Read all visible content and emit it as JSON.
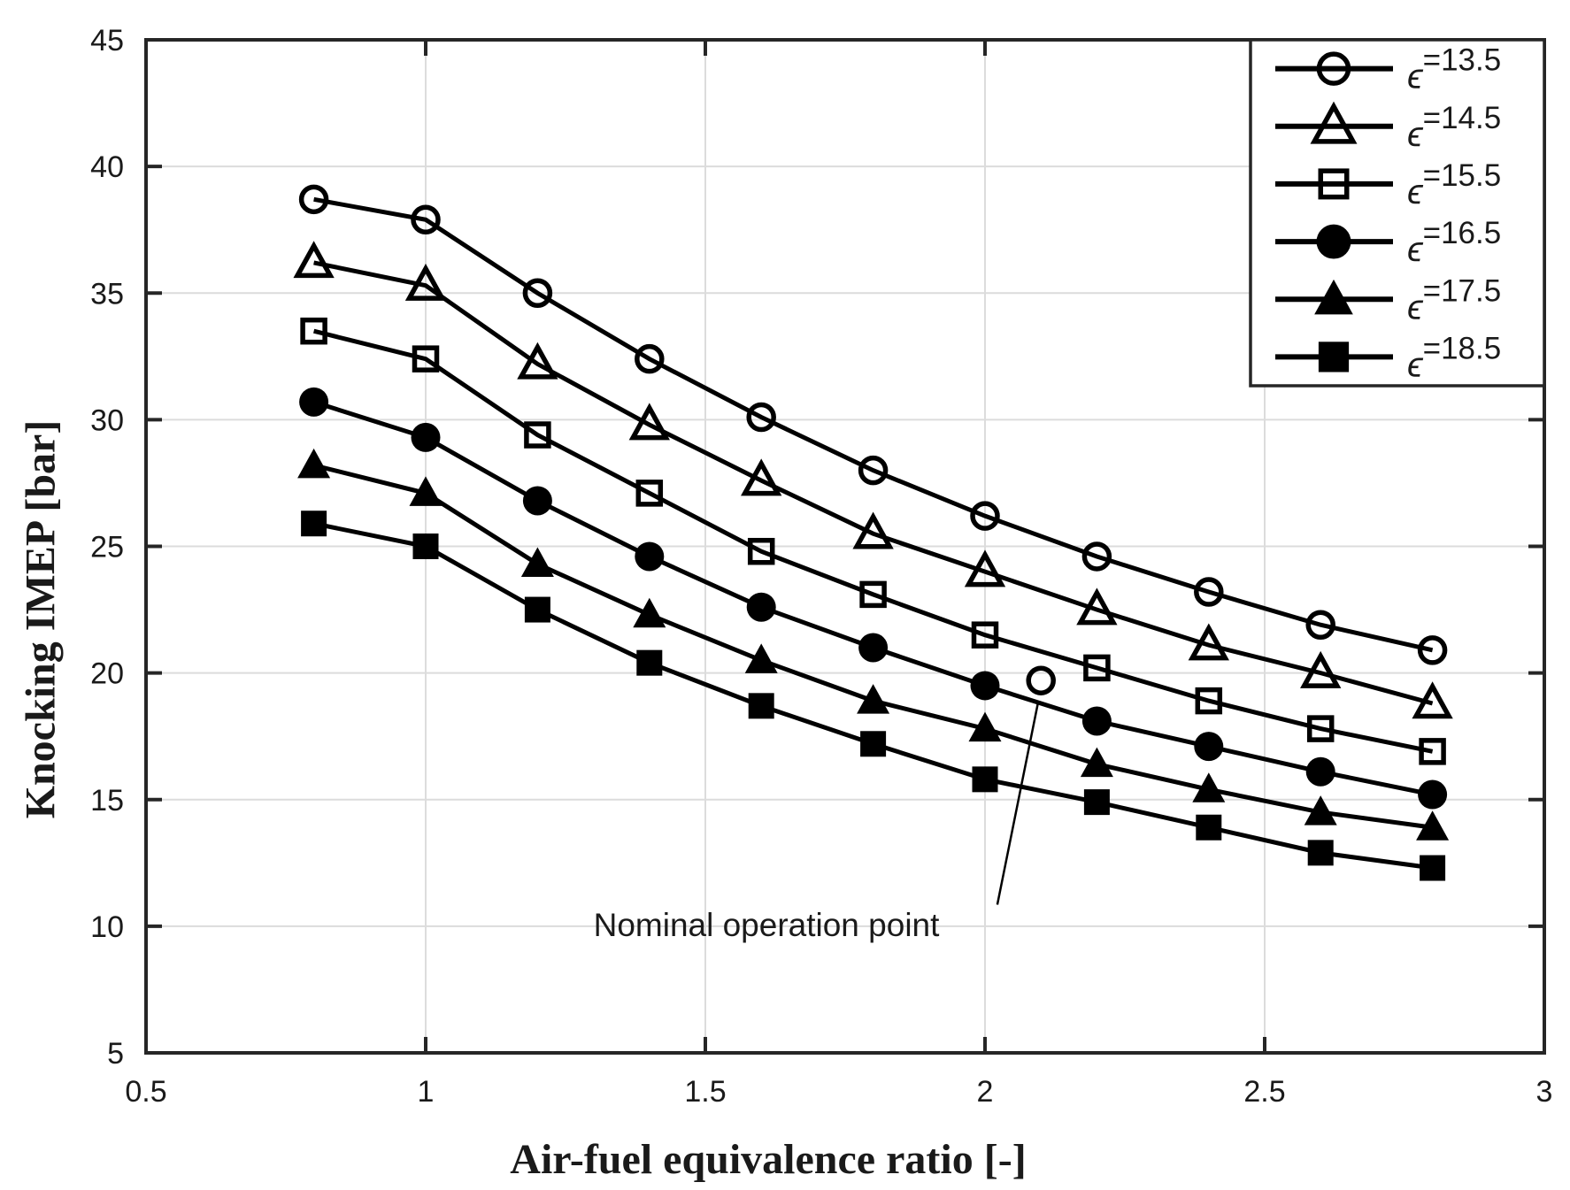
{
  "chart_data": {
    "type": "line",
    "title": "",
    "xlabel": "Air-fuel equivalence ratio [-]",
    "ylabel": "Knocking IMEP [bar]",
    "xlim": [
      0.5,
      3
    ],
    "ylim": [
      5,
      45
    ],
    "xticks": [
      0.5,
      1,
      1.5,
      2,
      2.5,
      3
    ],
    "yticks": [
      5,
      10,
      15,
      20,
      25,
      30,
      35,
      40,
      45
    ],
    "grid": true,
    "legend_position": "northeast-inside",
    "x": [
      0.8,
      1.0,
      1.2,
      1.4,
      1.6,
      1.8,
      2.0,
      2.2,
      2.4,
      2.6,
      2.8
    ],
    "series": [
      {
        "id": "eps-13-5",
        "name": "epsilon=13.5",
        "label_symbol": "ϵ",
        "label_value": "=13.5",
        "marker": "circle",
        "fill": "open",
        "values": [
          38.7,
          37.9,
          35.0,
          32.4,
          30.1,
          28.0,
          26.2,
          24.6,
          23.2,
          21.9,
          20.9
        ]
      },
      {
        "id": "eps-14-5",
        "name": "epsilon=14.5",
        "label_symbol": "ϵ",
        "label_value": "=14.5",
        "marker": "triangle",
        "fill": "open",
        "values": [
          36.2,
          35.3,
          32.2,
          29.8,
          27.6,
          25.5,
          24.0,
          22.5,
          21.1,
          20.0,
          18.8
        ]
      },
      {
        "id": "eps-15-5",
        "name": "epsilon=15.5",
        "label_symbol": "ϵ",
        "label_value": "=15.5",
        "marker": "square",
        "fill": "open",
        "values": [
          33.5,
          32.4,
          29.4,
          27.1,
          24.8,
          23.1,
          21.5,
          20.2,
          18.9,
          17.8,
          16.9
        ]
      },
      {
        "id": "eps-16-5",
        "name": "epsilon=16.5",
        "label_symbol": "ϵ",
        "label_value": "=16.5",
        "marker": "circle",
        "fill": "solid",
        "values": [
          30.7,
          29.3,
          26.8,
          24.6,
          22.6,
          21.0,
          19.5,
          18.1,
          17.1,
          16.1,
          15.2
        ]
      },
      {
        "id": "eps-17-5",
        "name": "epsilon=17.5",
        "label_symbol": "ϵ",
        "label_value": "=17.5",
        "marker": "triangle",
        "fill": "solid",
        "values": [
          28.2,
          27.1,
          24.3,
          22.3,
          20.5,
          18.9,
          17.8,
          16.4,
          15.4,
          14.5,
          13.9
        ]
      },
      {
        "id": "eps-18-5",
        "name": "epsilon=18.5",
        "label_symbol": "ϵ",
        "label_value": "=18.5",
        "marker": "square",
        "fill": "solid",
        "values": [
          25.9,
          25.0,
          22.5,
          20.4,
          18.7,
          17.2,
          15.8,
          14.9,
          13.9,
          12.9,
          12.3
        ]
      }
    ],
    "annotation": {
      "text": "Nominal operation point",
      "marker": "circle-open",
      "point": {
        "x": 2.1,
        "y": 19.7
      },
      "leader": {
        "x1": 2.095,
        "y1": 18.85,
        "x2": 2.022,
        "y2": 10.85
      },
      "text_anchor": {
        "x": 1.61,
        "y": 10.0
      }
    },
    "colors": {
      "line": "#000000",
      "axis": "#262626",
      "grid": "#dcdcdc",
      "text": "#1a1a1a",
      "background": "#ffffff"
    }
  }
}
